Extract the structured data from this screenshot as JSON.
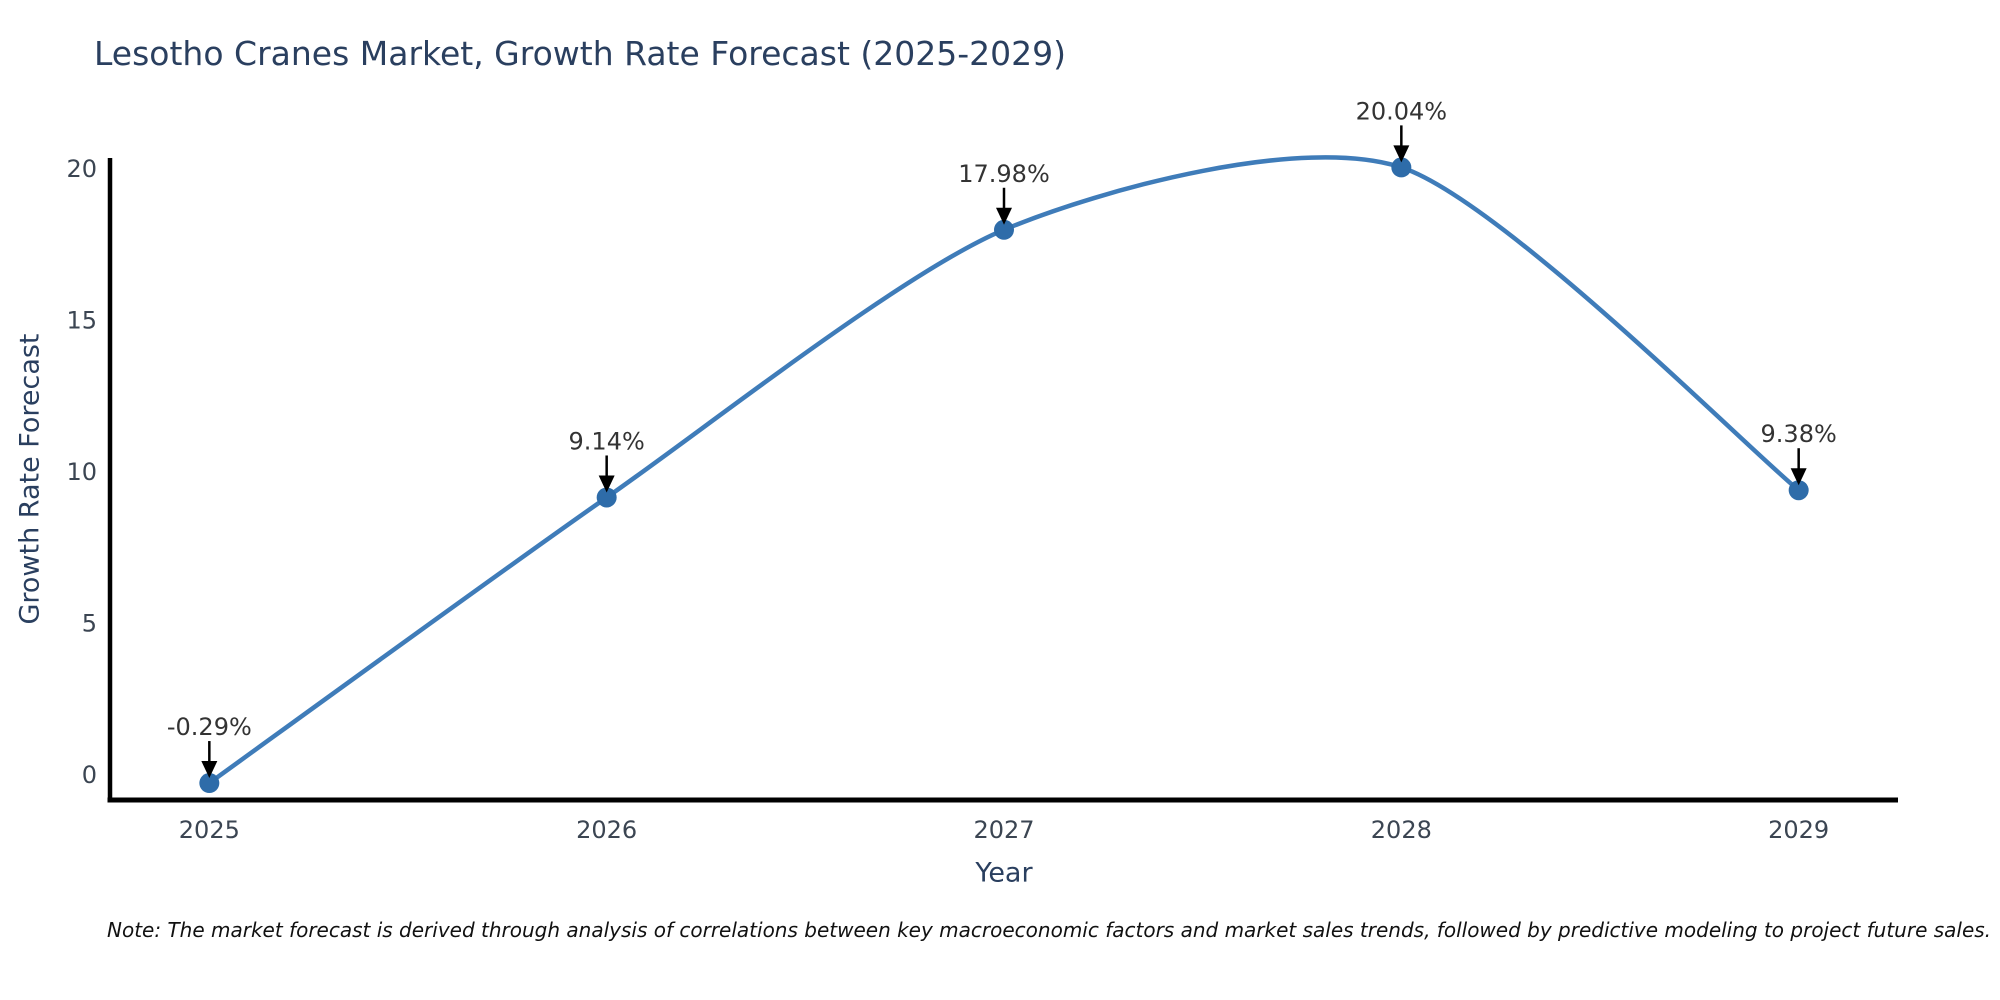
{
  "title": "Lesotho Cranes Market, Growth Rate Forecast (2025-2029)",
  "note": "Note: The market forecast is derived through analysis of correlations between key macroeconomic factors and market sales trends, followed by predictive modeling to project future sales.",
  "chart_data": {
    "type": "line",
    "title": "Lesotho Cranes Market, Growth Rate Forecast (2025-2029)",
    "xlabel": "Year",
    "ylabel": "Growth Rate Forecast",
    "x": [
      2025,
      2026,
      2027,
      2028,
      2029
    ],
    "y": [
      -0.29,
      9.14,
      17.98,
      20.04,
      9.38
    ],
    "point_labels": [
      "-0.29%",
      "9.14%",
      "17.98%",
      "20.04%",
      "9.38%"
    ],
    "xtick_labels": [
      "2025",
      "2026",
      "2027",
      "2028",
      "2029"
    ],
    "ytick_values": [
      0,
      5,
      10,
      15,
      20
    ],
    "ytick_labels": [
      "0",
      "5",
      "10",
      "15",
      "20"
    ],
    "xlim": [
      2024.75,
      2029.25
    ],
    "ylim": [
      -0.85,
      20.35
    ],
    "grid": false,
    "legend": "none",
    "line_shape": "spline",
    "line_color": "#3f7cb9",
    "marker_color": "#2e6ca9",
    "annotation_arrow_color": "#000000",
    "axis_line_color": "#000000",
    "background_color": "#ffffff"
  }
}
